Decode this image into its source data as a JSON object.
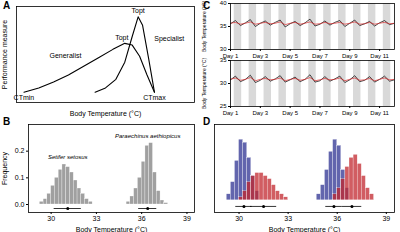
{
  "chart_data": [
    {
      "type": "line",
      "title": "A",
      "xlabel": "Body Temperature (°C)",
      "ylabel": "Performance measure",
      "xlim": [
        -0.5,
        11.5
      ],
      "ylim": [
        -0.12,
        1
      ],
      "tick_labels": false,
      "series": [
        {
          "x": [
            0,
            1,
            2,
            3,
            4,
            5,
            6,
            6.8,
            7.3,
            7.8,
            8.3,
            8.8
          ],
          "values": [
            0,
            0.05,
            0.12,
            0.2,
            0.3,
            0.4,
            0.5,
            0.57,
            0.55,
            0.42,
            0.2,
            0
          ],
          "color": "#000000"
        },
        {
          "x": [
            4.8,
            5.5,
            6.2,
            6.8,
            7.3,
            7.7,
            8.0,
            8.4,
            8.8
          ],
          "values": [
            0,
            0.05,
            0.15,
            0.35,
            0.65,
            0.88,
            0.78,
            0.4,
            0
          ],
          "color": "#000000"
        }
      ],
      "annotations": [
        {
          "text": "CTmin",
          "x": 0,
          "y": -0.06
        },
        {
          "text": "CTmax",
          "x": 8.8,
          "y": -0.06
        },
        {
          "text": "Topt",
          "x": 6.6,
          "y": 0.63
        },
        {
          "text": "Topt",
          "x": 7.7,
          "y": 0.95
        },
        {
          "text": "Generalist",
          "x": 2.8,
          "y": 0.42
        },
        {
          "text": "Specialist",
          "x": 9.8,
          "y": 0.62
        }
      ]
    },
    {
      "type": "histogram",
      "title": "B",
      "xlabel": "Body Temperature (°C)",
      "ylabel": "Frequency",
      "xlim": [
        28.5,
        39.5
      ],
      "xticks": [
        30,
        33,
        36,
        39
      ],
      "ylim": [
        -0.03,
        0.3
      ],
      "yticks": [
        {
          "value": 0,
          "label": "0.0"
        },
        {
          "value": 0.1,
          "label": "0.1"
        },
        {
          "value": 0.2,
          "label": "0.2"
        }
      ],
      "series": [
        {
          "name": "Setifer setosus",
          "color": "#808080",
          "bins": [
            29.25,
            29.5,
            29.75,
            30,
            30.25,
            30.5,
            30.75,
            31,
            31.25,
            31.5,
            31.75,
            32,
            32.25,
            32.5,
            32.75
          ],
          "values": [
            0.01,
            0.02,
            0.04,
            0.07,
            0.1,
            0.13,
            0.15,
            0.14,
            0.12,
            0.09,
            0.06,
            0.04,
            0.02,
            0.01
          ],
          "mean": 31.1,
          "error_bar": [
            30.2,
            32.0
          ]
        },
        {
          "name": "Paraechinus aethiopicus",
          "color": "#808080",
          "bins": [
            35,
            35.25,
            35.5,
            35.75,
            36,
            36.25,
            36.5,
            36.75,
            37,
            37.25,
            37.5,
            37.75
          ],
          "values": [
            0.01,
            0.03,
            0.06,
            0.1,
            0.16,
            0.22,
            0.23,
            0.12,
            0.05,
            0.015,
            0.005
          ],
          "mean": 36.4,
          "error_bar": [
            35.8,
            37.0
          ]
        }
      ]
    },
    {
      "type": "line",
      "title": "C",
      "ylabel": "Body Temperature (°C)",
      "xlim": [
        1,
        12
      ],
      "xticks": [
        {
          "value": 1,
          "label": "Day 1"
        },
        {
          "value": 3,
          "label": "Day 3"
        },
        {
          "value": 5,
          "label": "Day 5"
        },
        {
          "value": 7,
          "label": "Day 7"
        },
        {
          "value": 9,
          "label": "Day 9"
        },
        {
          "value": 11,
          "label": "Day 11"
        }
      ],
      "ylim": [
        30,
        40
      ],
      "yticks": [
        30,
        35,
        40
      ],
      "shaded": [
        [
          1.25,
          1.75
        ],
        [
          2.25,
          2.75
        ],
        [
          3.25,
          3.75
        ],
        [
          4.25,
          4.75
        ],
        [
          5.25,
          5.75
        ],
        [
          6.25,
          6.75
        ],
        [
          7.25,
          7.75
        ],
        [
          8.25,
          8.75
        ],
        [
          9.25,
          9.75
        ],
        [
          10.25,
          10.75
        ],
        [
          11.25,
          11.75
        ]
      ],
      "series": [
        {
          "color": "#000000",
          "x": [
            1,
            1.33,
            1.67,
            2,
            2.33,
            2.67,
            3,
            3.33,
            3.67,
            4,
            4.33,
            4.67,
            5,
            5.33,
            5.67,
            6,
            6.33,
            6.67,
            7,
            7.33,
            7.67,
            8,
            8.33,
            8.67,
            9,
            9.33,
            9.67,
            10,
            10.33,
            10.67,
            11,
            11.33,
            11.67,
            12
          ],
          "values": [
            35.6,
            36.3,
            35.2,
            35.8,
            36.5,
            35.0,
            35.7,
            36.2,
            35.3,
            35.9,
            36.4,
            34.9,
            35.6,
            36.1,
            35.2,
            35.8,
            36.6,
            35.1,
            35.5,
            36.2,
            35.3,
            35.9,
            36.3,
            35.0,
            35.7,
            36.4,
            35.2,
            35.6,
            36.1,
            35.1,
            35.8,
            36.3,
            35.4,
            35.7
          ]
        },
        {
          "color": "#d62728",
          "x": [
            1,
            1.33,
            1.67,
            2,
            2.33,
            2.67,
            3,
            3.33,
            3.67,
            4,
            4.33,
            4.67,
            5,
            5.33,
            5.67,
            6,
            6.33,
            6.67,
            7,
            7.33,
            7.67,
            8,
            8.33,
            8.67,
            9,
            9.33,
            9.67,
            10,
            10.33,
            10.67,
            11,
            11.33,
            11.67,
            12
          ],
          "values": [
            35.7,
            35.9,
            35.5,
            35.7,
            36.0,
            35.5,
            35.7,
            35.9,
            35.6,
            35.7,
            36.0,
            35.4,
            35.7,
            35.9,
            35.5,
            35.7,
            36.0,
            35.5,
            35.6,
            35.9,
            35.6,
            35.7,
            35.9,
            35.5,
            35.7,
            36.0,
            35.5,
            35.6,
            35.9,
            35.5,
            35.7,
            35.9,
            35.6,
            35.7
          ]
        }
      ]
    },
    {
      "type": "line",
      "ylabel": "Body Temperature (°C)",
      "xlim": [
        1,
        12
      ],
      "xticks": [
        {
          "value": 1,
          "label": "Day 1"
        },
        {
          "value": 3,
          "label": "Day 3"
        },
        {
          "value": 5,
          "label": "Day 5"
        },
        {
          "value": 7,
          "label": "Day 7"
        },
        {
          "value": 9,
          "label": "Day 9"
        },
        {
          "value": 11,
          "label": "Day 11"
        }
      ],
      "ylim": [
        25,
        35
      ],
      "yticks": [
        25,
        30,
        35
      ],
      "shaded": [
        [
          1.25,
          1.75
        ],
        [
          2.25,
          2.75
        ],
        [
          3.25,
          3.75
        ],
        [
          4.25,
          4.75
        ],
        [
          5.25,
          5.75
        ],
        [
          6.25,
          6.75
        ],
        [
          7.25,
          7.75
        ],
        [
          8.25,
          8.75
        ],
        [
          9.25,
          9.75
        ],
        [
          10.25,
          10.75
        ],
        [
          11.25,
          11.75
        ]
      ],
      "series": [
        {
          "color": "#000000",
          "x": [
            1,
            1.33,
            1.67,
            2,
            2.33,
            2.67,
            3,
            3.33,
            3.67,
            4,
            4.33,
            4.67,
            5,
            5.33,
            5.67,
            6,
            6.33,
            6.67,
            7,
            7.33,
            7.67,
            8,
            8.33,
            8.67,
            9,
            9.33,
            9.67,
            10,
            10.33,
            10.67,
            11,
            11.33,
            11.67,
            12
          ],
          "values": [
            30.8,
            31.6,
            30.4,
            30.9,
            31.8,
            30.2,
            30.7,
            31.5,
            30.5,
            31.0,
            31.7,
            30.3,
            30.8,
            31.4,
            30.4,
            30.9,
            31.9,
            30.3,
            30.6,
            31.5,
            30.5,
            31.0,
            31.6,
            30.2,
            30.8,
            31.7,
            30.4,
            30.7,
            31.5,
            30.3,
            30.9,
            31.6,
            30.5,
            30.8
          ]
        },
        {
          "color": "#d62728",
          "x": [
            1,
            1.33,
            1.67,
            2,
            2.33,
            2.67,
            3,
            3.33,
            3.67,
            4,
            4.33,
            4.67,
            5,
            5.33,
            5.67,
            6,
            6.33,
            6.67,
            7,
            7.33,
            7.67,
            8,
            8.33,
            8.67,
            9,
            9.33,
            9.67,
            10,
            10.33,
            10.67,
            11,
            11.33,
            11.67,
            12
          ],
          "values": [
            30.9,
            31.2,
            30.7,
            30.9,
            31.3,
            30.6,
            30.9,
            31.1,
            30.8,
            30.9,
            31.2,
            30.6,
            30.9,
            31.1,
            30.7,
            30.9,
            31.3,
            30.6,
            30.8,
            31.1,
            30.8,
            30.9,
            31.2,
            30.6,
            30.9,
            31.2,
            30.7,
            30.8,
            31.1,
            30.6,
            30.9,
            31.2,
            30.8,
            30.9
          ]
        }
      ]
    },
    {
      "type": "histogram",
      "title": "D",
      "xlabel": "Body Temperature (°C)",
      "tick_labels": "x",
      "xlim": [
        28.5,
        39.5
      ],
      "xticks": [
        30,
        33,
        36,
        39
      ],
      "ylim": [
        -0.04,
        0.25
      ],
      "series": [
        {
          "color": "#2e3192",
          "bins": [
            29.25,
            29.5,
            29.75,
            30,
            30.25,
            30.5,
            30.75,
            31,
            31.25
          ],
          "values": [
            0.02,
            0.06,
            0.13,
            0.2,
            0.19,
            0.14,
            0.08,
            0.03
          ],
          "mean": 30.3,
          "error_bar": [
            29.8,
            30.8
          ]
        },
        {
          "color": "#c1272d",
          "bins": [
            30,
            30.25,
            30.5,
            30.75,
            31,
            31.25,
            31.5,
            31.75,
            32,
            32.25,
            32.5,
            32.75,
            33
          ],
          "values": [
            0.01,
            0.03,
            0.06,
            0.08,
            0.09,
            0.09,
            0.08,
            0.07,
            0.05,
            0.03,
            0.02,
            0.01
          ],
          "mean": 31.5,
          "error_bar": [
            30.7,
            32.3
          ]
        },
        {
          "color": "#2e3192",
          "bins": [
            34.75,
            35,
            35.25,
            35.5,
            35.75,
            36,
            36.25,
            36.5,
            36.75
          ],
          "values": [
            0.02,
            0.05,
            0.1,
            0.16,
            0.2,
            0.18,
            0.1,
            0.04
          ],
          "mean": 35.8,
          "error_bar": [
            35.3,
            36.3
          ]
        },
        {
          "color": "#c1272d",
          "bins": [
            35.75,
            36,
            36.25,
            36.5,
            36.75,
            37,
            37.25,
            37.5,
            37.75,
            38,
            38.25
          ],
          "values": [
            0.02,
            0.04,
            0.07,
            0.11,
            0.14,
            0.15,
            0.12,
            0.08,
            0.04,
            0.02
          ],
          "mean": 36.9,
          "error_bar": [
            36.3,
            37.5
          ]
        }
      ]
    }
  ]
}
